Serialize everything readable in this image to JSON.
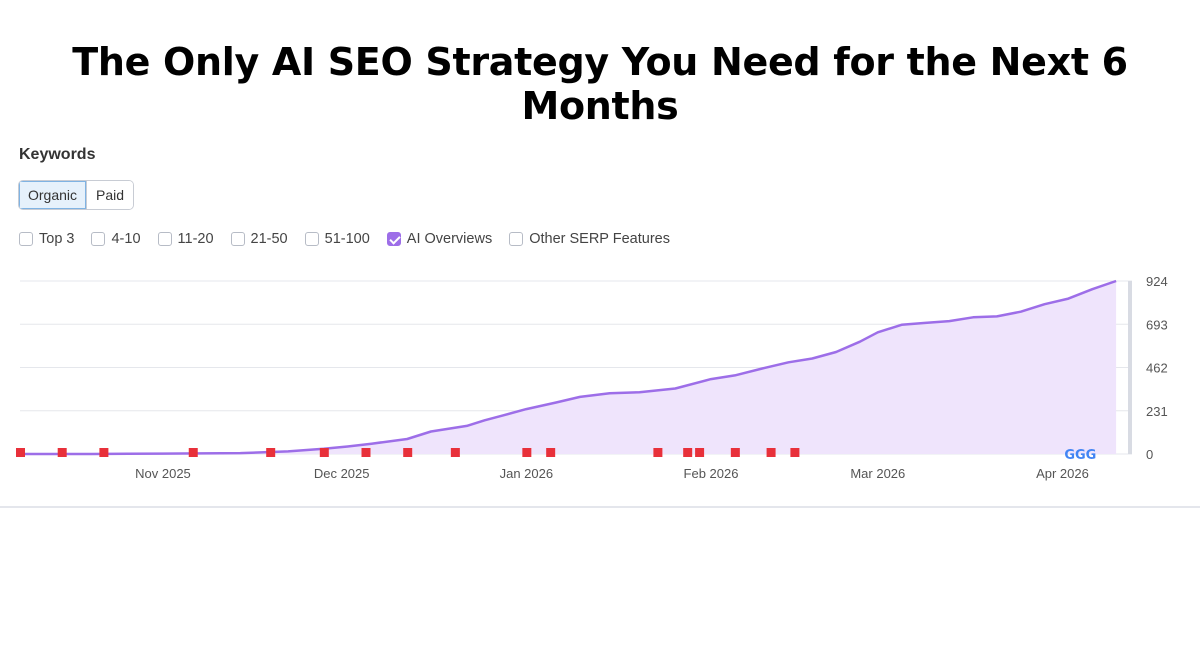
{
  "headline": "The Only AI SEO Strategy You Need for the Next 6 Months",
  "section_title": "Keywords",
  "toggle": [
    {
      "label": "Organic",
      "active": true
    },
    {
      "label": "Paid",
      "active": false
    }
  ],
  "filters": [
    {
      "label": "Top 3",
      "checked": false
    },
    {
      "label": "4-10",
      "checked": false
    },
    {
      "label": "11-20",
      "checked": false
    },
    {
      "label": "21-50",
      "checked": false
    },
    {
      "label": "51-100",
      "checked": false
    },
    {
      "label": "AI Overviews",
      "checked": true
    },
    {
      "label": "Other SERP Features",
      "checked": false
    }
  ],
  "colors": {
    "line": "#9d6ee8",
    "area": "#efe4fc",
    "flag": "#e8303a",
    "grid": "#e5e7ec"
  },
  "chart_data": {
    "type": "area",
    "ylabel": "",
    "xlabel": "",
    "ylim": [
      0,
      924
    ],
    "y_ticks": [
      "924",
      "693",
      "462",
      "231",
      "0"
    ],
    "y_tick_values": [
      924,
      693,
      462,
      231,
      0
    ],
    "x_ticks": [
      "Nov 2025",
      "Dec 2025",
      "Jan 2026",
      "Feb 2026",
      "Mar 2026",
      "Apr 2026"
    ],
    "x_tick_dates": [
      "2025-11-01",
      "2025-12-01",
      "2026-01-01",
      "2026-02-01",
      "2026-03-01",
      "2026-04-01"
    ],
    "x_range": [
      "2025-10-08",
      "2026-04-12"
    ],
    "grid": true,
    "series": [
      {
        "x": [
          "2025-10-08",
          "2025-10-20",
          "2025-11-01",
          "2025-11-14",
          "2025-11-22",
          "2025-11-28",
          "2025-12-02",
          "2025-12-06",
          "2025-12-12",
          "2025-12-16",
          "2025-12-22",
          "2025-12-25",
          "2025-12-28",
          "2026-01-01",
          "2026-01-06",
          "2026-01-10",
          "2026-01-15",
          "2026-01-20",
          "2026-01-26",
          "2026-02-01",
          "2026-02-05",
          "2026-02-10",
          "2026-02-14",
          "2026-02-18",
          "2026-02-22",
          "2026-02-26",
          "2026-03-01",
          "2026-03-05",
          "2026-03-09",
          "2026-03-13",
          "2026-03-17",
          "2026-03-21",
          "2026-03-25",
          "2026-03-29",
          "2026-04-02",
          "2026-04-06",
          "2026-04-10"
        ],
        "values": [
          0,
          0,
          2,
          5,
          14,
          28,
          40,
          55,
          80,
          120,
          150,
          180,
          205,
          240,
          275,
          305,
          325,
          330,
          350,
          400,
          420,
          460,
          490,
          510,
          545,
          600,
          650,
          690,
          700,
          710,
          730,
          735,
          760,
          800,
          830,
          880,
          924
        ]
      }
    ],
    "flags": [
      "2025-10-08",
      "2025-10-15",
      "2025-10-22",
      "2025-11-06",
      "2025-11-19",
      "2025-11-28",
      "2025-12-05",
      "2025-12-12",
      "2025-12-20",
      "2026-01-01",
      "2026-01-05",
      "2026-01-23",
      "2026-01-28",
      "2026-01-30",
      "2026-02-05",
      "2026-02-11",
      "2026-02-15"
    ],
    "google_marker_label": "G",
    "google_marker_date": "2026-04-04"
  }
}
